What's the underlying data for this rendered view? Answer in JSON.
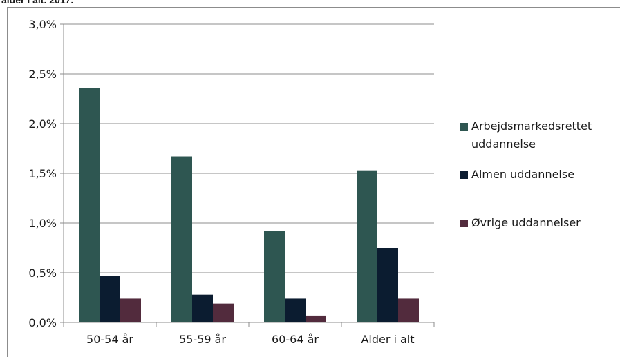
{
  "chart_data": {
    "type": "bar",
    "clipped_title": "alder i alt. 2017.",
    "categories": [
      "50-54 år",
      "55-59 år",
      "60-64 år",
      "Alder i alt"
    ],
    "series": [
      {
        "name": "Arbejdsmarkedsrettet uddannelse",
        "color": "#2e5651",
        "values": [
          2.36,
          1.67,
          0.92,
          1.53
        ]
      },
      {
        "name": "Almen uddannelse",
        "color": "#0b1c30",
        "values": [
          0.47,
          0.28,
          0.24,
          0.75
        ]
      },
      {
        "name": "Øvrige uddannelser",
        "color": "#522b3d",
        "values": [
          0.24,
          0.19,
          0.07,
          0.24
        ]
      }
    ],
    "ylim": [
      0,
      3.0
    ],
    "yticks": [
      {
        "value": 0.0,
        "label": "0,0%"
      },
      {
        "value": 0.5,
        "label": "0,5%"
      },
      {
        "value": 1.0,
        "label": "1,0%"
      },
      {
        "value": 1.5,
        "label": "1,5%"
      },
      {
        "value": 2.0,
        "label": "2,0%"
      },
      {
        "value": 2.5,
        "label": "2,5%"
      },
      {
        "value": 3.0,
        "label": "3,0%"
      }
    ],
    "xlabel": "",
    "ylabel": "",
    "grid": true,
    "legend_position": "right"
  }
}
